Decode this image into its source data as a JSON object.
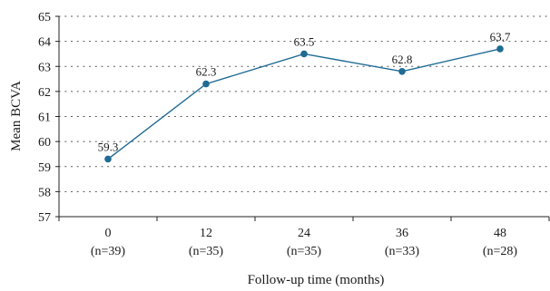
{
  "chart_data": {
    "type": "line",
    "title": "",
    "xlabel": "Follow-up time (months)",
    "ylabel": "Mean BCVA",
    "categories": [
      "0",
      "12",
      "24",
      "36",
      "48"
    ],
    "category_sublabels": [
      "(n=39)",
      "(n=35)",
      "(n=35)",
      "(n=33)",
      "(n=28)"
    ],
    "series": [
      {
        "values": [
          59.3,
          62.3,
          63.5,
          62.8,
          63.7
        ],
        "color": "#1f6b94"
      }
    ],
    "data_labels": [
      "59.3",
      "62.3",
      "63.5",
      "62.8",
      "63.7"
    ],
    "ylim": [
      57,
      65
    ],
    "yticks": [
      "57",
      "58",
      "59",
      "60",
      "61",
      "62",
      "63",
      "64",
      "65"
    ],
    "grid": true,
    "grid_style": "dotted",
    "legend": "none"
  }
}
